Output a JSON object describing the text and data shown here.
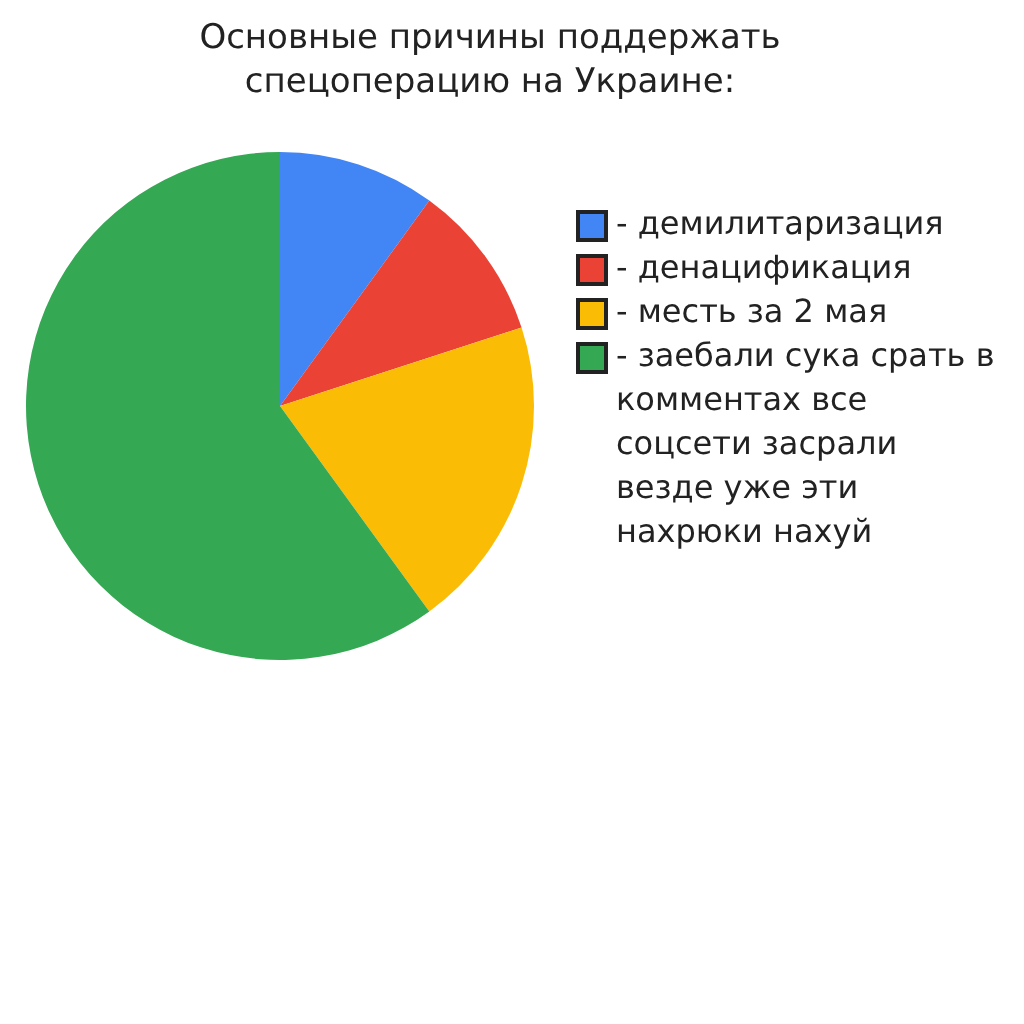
{
  "chart_data": {
    "type": "pie",
    "title": "Основные причины поддержать спецоперацию на Украине:",
    "categories": [
      "- демилитаризация",
      "- денацификация",
      "- месть за 2 мая",
      "- заебали сука срать в комментах все соцсети засрали везде уже эти нахрюки нахуй"
    ],
    "values": [
      10,
      10,
      20,
      60
    ],
    "colors": [
      "#4285f4",
      "#ea4335",
      "#fbbc05",
      "#34a853"
    ],
    "legend": "right"
  }
}
